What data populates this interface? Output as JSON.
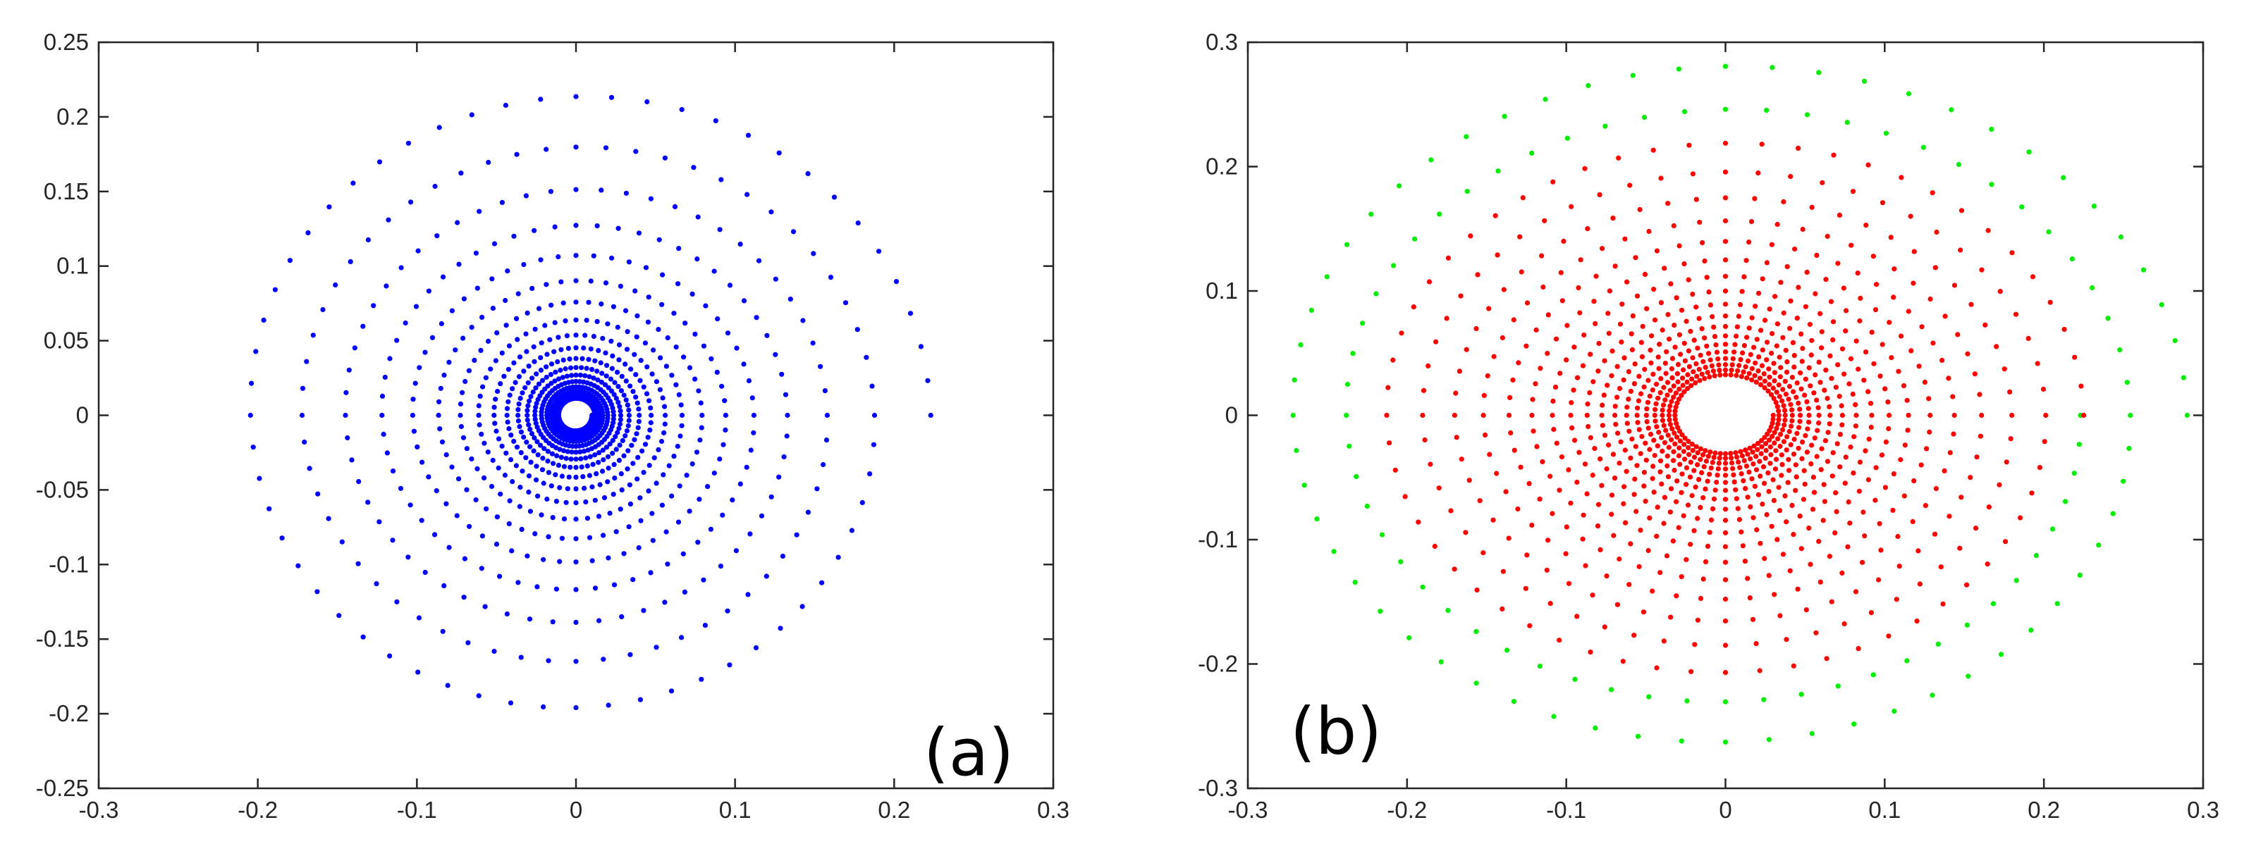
{
  "figure": {
    "panels_count": 2
  },
  "chart_data": [
    {
      "type": "scatter",
      "panel_label": "(a)",
      "xlim": [
        -0.3,
        0.3
      ],
      "ylim": [
        -0.25,
        0.25
      ],
      "xticks": [
        "-0.3",
        "-0.2",
        "-0.1",
        "0",
        "0.1",
        "0.2",
        "0.3"
      ],
      "yticks": [
        "0.25",
        "0.2",
        "0.15",
        "0.1",
        "0.05",
        "0",
        "-0.05",
        "-0.1",
        "-0.15",
        "-0.2",
        "-0.25"
      ],
      "xtick_values": [
        -0.3,
        -0.2,
        -0.1,
        0,
        0.1,
        0.2,
        0.3
      ],
      "ytick_values": [
        0.25,
        0.2,
        0.15,
        0.1,
        0.05,
        0,
        -0.05,
        -0.1,
        -0.15,
        -0.2,
        -0.25
      ],
      "grid": false,
      "series": [
        {
          "name": "inward spiral trajectory",
          "color": "#0000ff",
          "marker": "dot",
          "description_params": {
            "start_radius": 0.223,
            "end_radius": 0.01,
            "xscale": 1.0,
            "yscale": 1.0,
            "turns": 18,
            "points_per_turn": 60
          }
        }
      ]
    },
    {
      "type": "scatter",
      "panel_label": "(b)",
      "xlim": [
        -0.3,
        0.3
      ],
      "ylim": [
        -0.3,
        0.3
      ],
      "xticks": [
        "-0.3",
        "-0.2",
        "-0.1",
        "0",
        "0.1",
        "0.2",
        "0.3"
      ],
      "yticks": [
        "0.3",
        "0.2",
        "0.1",
        "0",
        "-0.1",
        "-0.2",
        "-0.3"
      ],
      "xtick_values": [
        -0.3,
        -0.2,
        -0.1,
        0,
        0.1,
        0.2,
        0.3
      ],
      "ytick_values": [
        0.3,
        0.2,
        0.1,
        0,
        -0.1,
        -0.2,
        -0.3
      ],
      "grid": false,
      "series": [
        {
          "name": "outer spiral (green)",
          "color": "#00ee00",
          "marker": "dot",
          "description_params": {
            "start_radius": 0.29,
            "end_radius": 0.223,
            "xscale": 1.0,
            "yscale": 1.0,
            "turns": 2,
            "points_per_turn": 60
          }
        },
        {
          "name": "inner spiral (red)",
          "color": "#ff0000",
          "marker": "dot",
          "description_params": {
            "start_radius": 0.225,
            "end_radius": 0.03,
            "xscale": 1.0,
            "yscale": 1.0,
            "turns": 18,
            "points_per_turn": 60
          }
        }
      ]
    }
  ]
}
